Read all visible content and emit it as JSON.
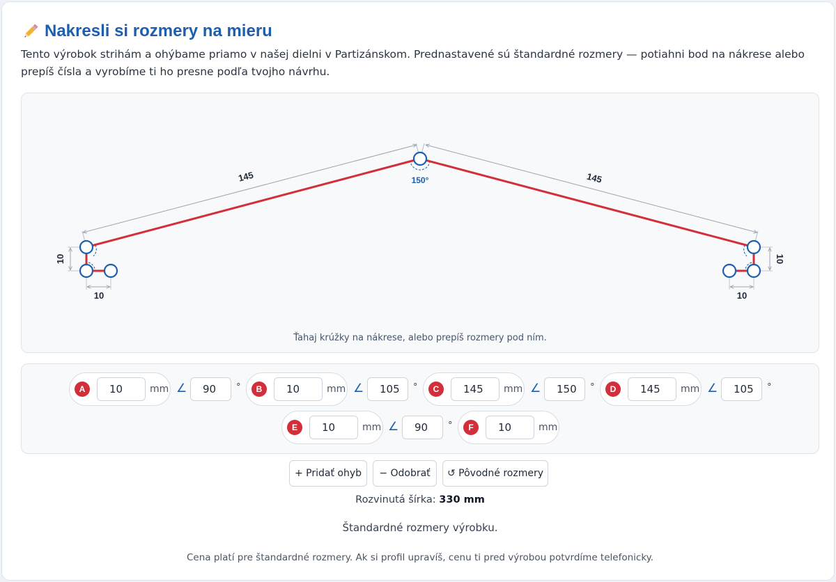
{
  "header": {
    "title": "Nakresli si rozmery na mieru",
    "icon": "pencil-icon",
    "description": "Tento výrobok strihám a ohýbame priamo v našej dielni v Partizánskom. Prednastavené sú štandardné rozmery — potiahni bod na nákrese alebo prepíš čísla a vyrobíme ti ho presne podľa tvojho návrhu."
  },
  "drawing": {
    "hint": "Ťahaj krúžky na nákrese, alebo prepíš rozmery pod ním.",
    "labels": {
      "left_slope": "145",
      "right_slope": "145",
      "apex_angle": "150°",
      "left_vertical": "10",
      "left_horizontal": "10",
      "right_vertical": "10",
      "right_horizontal": "10"
    },
    "colors": {
      "profile": "#d32f3a",
      "handle": "#1d5fae",
      "dimension": "#9ca3af"
    }
  },
  "segments": [
    {
      "letter": "A",
      "length": "10",
      "unit": "mm",
      "angle": "90",
      "deg": "°"
    },
    {
      "letter": "B",
      "length": "10",
      "unit": "mm",
      "angle": "105",
      "deg": "°"
    },
    {
      "letter": "C",
      "length": "145",
      "unit": "mm",
      "angle": "150",
      "deg": "°"
    },
    {
      "letter": "D",
      "length": "145",
      "unit": "mm",
      "angle": "105",
      "deg": "°"
    },
    {
      "letter": "E",
      "length": "10",
      "unit": "mm",
      "angle": "90",
      "deg": "°"
    },
    {
      "letter": "F",
      "length": "10",
      "unit": "mm"
    }
  ],
  "angle_symbol": "∠",
  "buttons": {
    "add_bend": "+ Pridať ohyb",
    "remove": "− Odobrať",
    "reset": "↺ Pôvodné rozmery"
  },
  "summary": {
    "width_label": "Rozvinutá šírka:",
    "width_value": "330 mm",
    "standard_text": "Štandardné rozmery výrobku.",
    "price_note": "Cena platí pre štandardné rozmery. Ak si profil upravíš, cenu ti pred výrobou potvrdíme telefonicky."
  }
}
